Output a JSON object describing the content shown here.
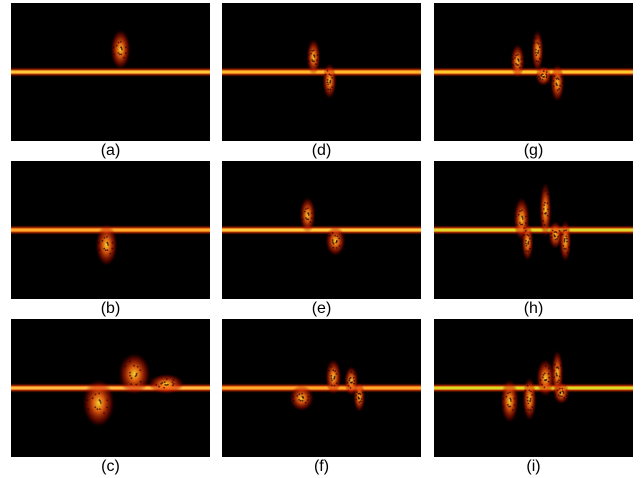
{
  "figure": {
    "panels": [
      {
        "label": "(a)",
        "band_color": "#ffcc33",
        "band_core": "#fff6c8",
        "blobs": [
          [
            0.55,
            -45,
            32,
            10
          ]
        ]
      },
      {
        "label": "(b)",
        "band_color": "#ffaa22",
        "band_core": "#ffe9a8",
        "blobs": [
          [
            0.48,
            30,
            34,
            11
          ]
        ]
      },
      {
        "label": "(c)",
        "band_color": "#ffbb33",
        "band_core": "#ffffff",
        "blobs": [
          [
            0.44,
            30,
            40,
            16
          ],
          [
            0.62,
            -28,
            34,
            16
          ],
          [
            0.78,
            -8,
            12,
            18
          ]
        ]
      },
      {
        "label": "(d)",
        "band_color": "#ffbb22",
        "band_core": "#fff3b0",
        "blobs": [
          [
            0.46,
            -30,
            28,
            7
          ],
          [
            0.54,
            18,
            28,
            7
          ]
        ]
      },
      {
        "label": "(e)",
        "band_color": "#ffcc33",
        "band_core": "#fff8d0",
        "blobs": [
          [
            0.43,
            -30,
            28,
            8
          ],
          [
            0.57,
            22,
            22,
            10
          ]
        ]
      },
      {
        "label": "(f)",
        "band_color": "#ffaa22",
        "band_core": "#ffe6a0",
        "blobs": [
          [
            0.4,
            20,
            18,
            12
          ],
          [
            0.56,
            -22,
            28,
            8
          ],
          [
            0.65,
            -14,
            22,
            7
          ],
          [
            0.69,
            18,
            22,
            6
          ]
        ]
      },
      {
        "label": "(g)",
        "band_color": "#ffcc22",
        "band_core": "#fff6c0",
        "blobs": [
          [
            0.42,
            -22,
            26,
            7
          ],
          [
            0.52,
            -42,
            34,
            6
          ],
          [
            0.55,
            8,
            12,
            8
          ],
          [
            0.62,
            22,
            30,
            7
          ]
        ]
      },
      {
        "label": "(h)",
        "band_color": "#dddd22",
        "band_core": "#f6ff90",
        "blobs": [
          [
            0.44,
            -22,
            36,
            8
          ],
          [
            0.47,
            24,
            30,
            6
          ],
          [
            0.56,
            -40,
            48,
            6
          ],
          [
            0.61,
            10,
            20,
            7
          ],
          [
            0.66,
            22,
            34,
            6
          ]
        ]
      },
      {
        "label": "(i)",
        "band_color": "#dddd11",
        "band_core": "#ffffff",
        "blobs": [
          [
            0.38,
            26,
            36,
            9
          ],
          [
            0.48,
            22,
            36,
            7
          ],
          [
            0.56,
            -20,
            30,
            9
          ],
          [
            0.62,
            -30,
            38,
            6
          ],
          [
            0.64,
            10,
            14,
            8
          ]
        ]
      }
    ]
  }
}
